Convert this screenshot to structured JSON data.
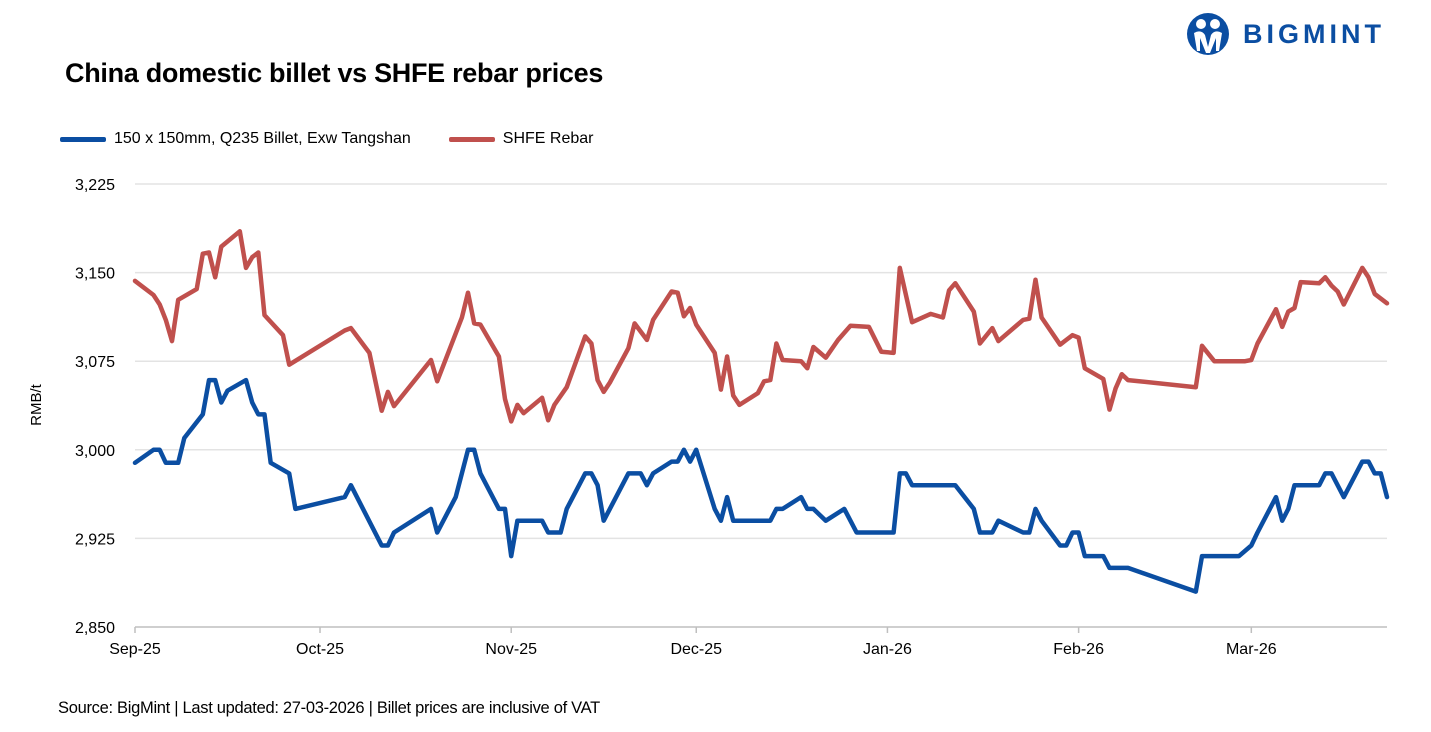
{
  "title": "China domestic billet vs SHFE rebar prices",
  "logo": {
    "text": "BIGMINT",
    "color": "#0b4ea2"
  },
  "source": "Source: BigMint | Last updated: 27-03-2026 | Billet prices are inclusive of VAT",
  "chart_data": {
    "type": "line",
    "title": "China domestic billet vs SHFE rebar prices",
    "xlabel": "",
    "ylabel": "RMB/t",
    "ylim": [
      2850,
      3225
    ],
    "yticks": [
      2850,
      2925,
      3000,
      3075,
      3150,
      3225
    ],
    "ytick_labels": [
      "2,850",
      "2,925",
      "3,000",
      "3,075",
      "3,150",
      "3,225"
    ],
    "xlim": [
      "2025-09-01",
      "2026-03-23"
    ],
    "xticks": [
      "2025-09-01",
      "2025-10-01",
      "2025-11-01",
      "2025-12-01",
      "2026-01-01",
      "2026-02-01",
      "2026-03-01"
    ],
    "xtick_labels": [
      "Sep-25",
      "Oct-25",
      "Nov-25",
      "Dec-25",
      "Jan-26",
      "Feb-26",
      "Mar-26"
    ],
    "grid": "horizontal",
    "legend_position": "top-left",
    "series": [
      {
        "name": "150 x 150mm, Q235 Billet, Exw Tangshan",
        "color": "#0b4ea2",
        "points": [
          [
            "2025-09-01",
            2989
          ],
          [
            "2025-09-04",
            3000
          ],
          [
            "2025-09-05",
            3000
          ],
          [
            "2025-09-06",
            2989
          ],
          [
            "2025-09-08",
            2989
          ],
          [
            "2025-09-09",
            3010
          ],
          [
            "2025-09-12",
            3030
          ],
          [
            "2025-09-13",
            3059
          ],
          [
            "2025-09-14",
            3059
          ],
          [
            "2025-09-15",
            3040
          ],
          [
            "2025-09-16",
            3050
          ],
          [
            "2025-09-19",
            3059
          ],
          [
            "2025-09-20",
            3040
          ],
          [
            "2025-09-21",
            3030
          ],
          [
            "2025-09-22",
            3030
          ],
          [
            "2025-09-23",
            2989
          ],
          [
            "2025-09-26",
            2980
          ],
          [
            "2025-09-27",
            2950
          ],
          [
            "2025-10-05",
            2960
          ],
          [
            "2025-10-06",
            2970
          ],
          [
            "2025-10-11",
            2919
          ],
          [
            "2025-10-12",
            2919
          ],
          [
            "2025-10-13",
            2930
          ],
          [
            "2025-10-19",
            2950
          ],
          [
            "2025-10-20",
            2930
          ],
          [
            "2025-10-23",
            2960
          ],
          [
            "2025-10-25",
            3000
          ],
          [
            "2025-10-26",
            3000
          ],
          [
            "2025-10-27",
            2980
          ],
          [
            "2025-10-30",
            2950
          ],
          [
            "2025-10-31",
            2950
          ],
          [
            "2025-11-01",
            2910
          ],
          [
            "2025-11-02",
            2940
          ],
          [
            "2025-11-06",
            2940
          ],
          [
            "2025-11-07",
            2930
          ],
          [
            "2025-11-09",
            2930
          ],
          [
            "2025-11-10",
            2950
          ],
          [
            "2025-11-13",
            2980
          ],
          [
            "2025-11-14",
            2980
          ],
          [
            "2025-11-15",
            2970
          ],
          [
            "2025-11-16",
            2940
          ],
          [
            "2025-11-20",
            2980
          ],
          [
            "2025-11-22",
            2980
          ],
          [
            "2025-11-23",
            2970
          ],
          [
            "2025-11-24",
            2980
          ],
          [
            "2025-11-27",
            2990
          ],
          [
            "2025-11-28",
            2990
          ],
          [
            "2025-11-29",
            3000
          ],
          [
            "2025-11-30",
            2990
          ],
          [
            "2025-12-01",
            3000
          ],
          [
            "2025-12-04",
            2950
          ],
          [
            "2025-12-05",
            2940
          ],
          [
            "2025-12-06",
            2960
          ],
          [
            "2025-12-07",
            2940
          ],
          [
            "2025-12-13",
            2940
          ],
          [
            "2025-12-14",
            2950
          ],
          [
            "2025-12-15",
            2950
          ],
          [
            "2025-12-18",
            2960
          ],
          [
            "2025-12-19",
            2950
          ],
          [
            "2025-12-20",
            2950
          ],
          [
            "2025-12-22",
            2940
          ],
          [
            "2025-12-25",
            2950
          ],
          [
            "2025-12-27",
            2930
          ],
          [
            "2026-01-02",
            2930
          ],
          [
            "2026-01-03",
            2980
          ],
          [
            "2026-01-04",
            2980
          ],
          [
            "2026-01-05",
            2970
          ],
          [
            "2026-01-12",
            2970
          ],
          [
            "2026-01-15",
            2950
          ],
          [
            "2026-01-16",
            2930
          ],
          [
            "2026-01-18",
            2930
          ],
          [
            "2026-01-19",
            2940
          ],
          [
            "2026-01-23",
            2930
          ],
          [
            "2026-01-24",
            2930
          ],
          [
            "2026-01-25",
            2950
          ],
          [
            "2026-01-26",
            2940
          ],
          [
            "2026-01-29",
            2919
          ],
          [
            "2026-01-30",
            2919
          ],
          [
            "2026-01-31",
            2930
          ],
          [
            "2026-02-01",
            2930
          ],
          [
            "2026-02-02",
            2910
          ],
          [
            "2026-02-05",
            2910
          ],
          [
            "2026-02-06",
            2900
          ],
          [
            "2026-02-09",
            2900
          ],
          [
            "2026-02-20",
            2880
          ],
          [
            "2026-02-21",
            2910
          ],
          [
            "2026-02-27",
            2910
          ],
          [
            "2026-03-01",
            2919
          ],
          [
            "2026-03-02",
            2930
          ],
          [
            "2026-03-05",
            2960
          ],
          [
            "2026-03-06",
            2940
          ],
          [
            "2026-03-07",
            2950
          ],
          [
            "2026-03-08",
            2970
          ],
          [
            "2026-03-12",
            2970
          ],
          [
            "2026-03-13",
            2980
          ],
          [
            "2026-03-14",
            2980
          ],
          [
            "2026-03-16",
            2960
          ],
          [
            "2026-03-19",
            2990
          ],
          [
            "2026-03-20",
            2990
          ],
          [
            "2026-03-21",
            2980
          ],
          [
            "2026-03-22",
            2980
          ],
          [
            "2026-03-23",
            2960
          ]
        ]
      },
      {
        "name": "SHFE Rebar",
        "color": "#c0504d",
        "points": [
          [
            "2025-09-01",
            3143
          ],
          [
            "2025-09-04",
            3131
          ],
          [
            "2025-09-05",
            3123
          ],
          [
            "2025-09-06",
            3110
          ],
          [
            "2025-09-07",
            3092
          ],
          [
            "2025-09-08",
            3127
          ],
          [
            "2025-09-11",
            3136
          ],
          [
            "2025-09-12",
            3166
          ],
          [
            "2025-09-13",
            3167
          ],
          [
            "2025-09-14",
            3146
          ],
          [
            "2025-09-15",
            3172
          ],
          [
            "2025-09-18",
            3185
          ],
          [
            "2025-09-19",
            3154
          ],
          [
            "2025-09-20",
            3163
          ],
          [
            "2025-09-21",
            3167
          ],
          [
            "2025-09-22",
            3114
          ],
          [
            "2025-09-25",
            3097
          ],
          [
            "2025-09-26",
            3072
          ],
          [
            "2025-10-05",
            3101
          ],
          [
            "2025-10-06",
            3103
          ],
          [
            "2025-10-09",
            3082
          ],
          [
            "2025-10-11",
            3033
          ],
          [
            "2025-10-12",
            3049
          ],
          [
            "2025-10-13",
            3037
          ],
          [
            "2025-10-19",
            3076
          ],
          [
            "2025-10-20",
            3058
          ],
          [
            "2025-10-24",
            3112
          ],
          [
            "2025-10-25",
            3133
          ],
          [
            "2025-10-26",
            3107
          ],
          [
            "2025-10-27",
            3106
          ],
          [
            "2025-10-30",
            3079
          ],
          [
            "2025-10-31",
            3043
          ],
          [
            "2025-11-01",
            3024
          ],
          [
            "2025-11-02",
            3038
          ],
          [
            "2025-11-03",
            3031
          ],
          [
            "2025-11-06",
            3044
          ],
          [
            "2025-11-07",
            3025
          ],
          [
            "2025-11-08",
            3038
          ],
          [
            "2025-11-10",
            3053
          ],
          [
            "2025-11-13",
            3096
          ],
          [
            "2025-11-14",
            3090
          ],
          [
            "2025-11-15",
            3059
          ],
          [
            "2025-11-16",
            3049
          ],
          [
            "2025-11-17",
            3057
          ],
          [
            "2025-11-20",
            3086
          ],
          [
            "2025-11-21",
            3107
          ],
          [
            "2025-11-23",
            3093
          ],
          [
            "2025-11-24",
            3110
          ],
          [
            "2025-11-27",
            3134
          ],
          [
            "2025-11-28",
            3133
          ],
          [
            "2025-11-29",
            3113
          ],
          [
            "2025-11-30",
            3120
          ],
          [
            "2025-12-01",
            3106
          ],
          [
            "2025-12-04",
            3082
          ],
          [
            "2025-12-05",
            3051
          ],
          [
            "2025-12-06",
            3079
          ],
          [
            "2025-12-07",
            3046
          ],
          [
            "2025-12-08",
            3038
          ],
          [
            "2025-12-11",
            3048
          ],
          [
            "2025-12-12",
            3058
          ],
          [
            "2025-12-13",
            3059
          ],
          [
            "2025-12-14",
            3090
          ],
          [
            "2025-12-15",
            3076
          ],
          [
            "2025-12-18",
            3075
          ],
          [
            "2025-12-19",
            3069
          ],
          [
            "2025-12-20",
            3087
          ],
          [
            "2025-12-22",
            3078
          ],
          [
            "2025-12-24",
            3093
          ],
          [
            "2025-12-26",
            3105
          ],
          [
            "2025-12-29",
            3104
          ],
          [
            "2025-12-31",
            3083
          ],
          [
            "2026-01-02",
            3082
          ],
          [
            "2026-01-03",
            3154
          ],
          [
            "2026-01-05",
            3108
          ],
          [
            "2026-01-08",
            3115
          ],
          [
            "2026-01-10",
            3112
          ],
          [
            "2026-01-11",
            3135
          ],
          [
            "2026-01-12",
            3141
          ],
          [
            "2026-01-15",
            3117
          ],
          [
            "2026-01-16",
            3090
          ],
          [
            "2026-01-18",
            3103
          ],
          [
            "2026-01-19",
            3092
          ],
          [
            "2026-01-23",
            3110
          ],
          [
            "2026-01-24",
            3111
          ],
          [
            "2026-01-25",
            3144
          ],
          [
            "2026-01-26",
            3112
          ],
          [
            "2026-01-29",
            3089
          ],
          [
            "2026-01-30",
            3093
          ],
          [
            "2026-01-31",
            3097
          ],
          [
            "2026-02-01",
            3095
          ],
          [
            "2026-02-02",
            3069
          ],
          [
            "2026-02-05",
            3060
          ],
          [
            "2026-02-06",
            3034
          ],
          [
            "2026-02-07",
            3052
          ],
          [
            "2026-02-08",
            3064
          ],
          [
            "2026-02-09",
            3059
          ],
          [
            "2026-02-20",
            3053
          ],
          [
            "2026-02-21",
            3088
          ],
          [
            "2026-02-23",
            3075
          ],
          [
            "2026-02-28",
            3075
          ],
          [
            "2026-03-01",
            3076
          ],
          [
            "2026-03-02",
            3090
          ],
          [
            "2026-03-05",
            3119
          ],
          [
            "2026-03-06",
            3104
          ],
          [
            "2026-03-07",
            3117
          ],
          [
            "2026-03-08",
            3120
          ],
          [
            "2026-03-09",
            3142
          ],
          [
            "2026-03-12",
            3141
          ],
          [
            "2026-03-13",
            3146
          ],
          [
            "2026-03-14",
            3139
          ],
          [
            "2026-03-15",
            3134
          ],
          [
            "2026-03-16",
            3123
          ],
          [
            "2026-03-19",
            3154
          ],
          [
            "2026-03-20",
            3146
          ],
          [
            "2026-03-21",
            3132
          ],
          [
            "2026-03-23",
            3124
          ]
        ]
      }
    ]
  }
}
